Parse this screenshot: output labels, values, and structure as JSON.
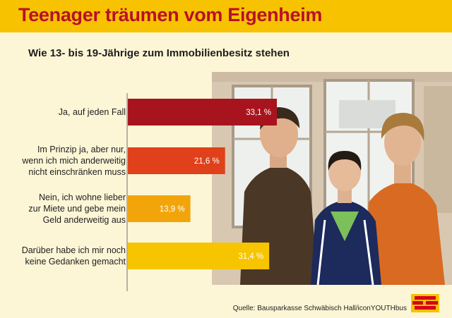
{
  "header": {
    "title": "Teenager träumen vom Eigenheim",
    "subtitle": "Wie 13- bis 19-Jährige zum Immobilienbesitz stehen"
  },
  "chart_data": {
    "type": "bar",
    "orientation": "horizontal",
    "categories": [
      "Ja, auf jeden Fall",
      "Im Prinzip ja, aber nur,\nwenn ich mich anderweitig\nnicht einschränken muss",
      "Nein, ich wohne lieber\nzur Miete und gebe mein\nGeld anderweitig aus",
      "Darüber habe ich mir noch\nkeine Gedanken gemacht"
    ],
    "values": [
      33.1,
      21.6,
      13.9,
      31.4
    ],
    "value_labels": [
      "33,1 %",
      "21,6 %",
      "13,9 %",
      "31,4 %"
    ],
    "bar_colors": [
      "#a8141e",
      "#e0401a",
      "#f2a50a",
      "#f7c400"
    ],
    "title": "Teenager träumen vom Eigenheim",
    "subtitle": "Wie 13- bis 19-Jährige zum Immobilienbesitz stehen",
    "xlim": [
      0,
      40
    ],
    "grid": false,
    "legend": "none"
  },
  "footer": {
    "source": "Quelle: Bausparkasse Schwäbisch Hall/iconYOUTHbus"
  },
  "colors": {
    "banner": "#f7c200",
    "title": "#b8102a",
    "background": "#fdf6d6",
    "logo_bricks": "#d6001c"
  },
  "photo": {
    "icon": "photo-three-teenagers"
  }
}
